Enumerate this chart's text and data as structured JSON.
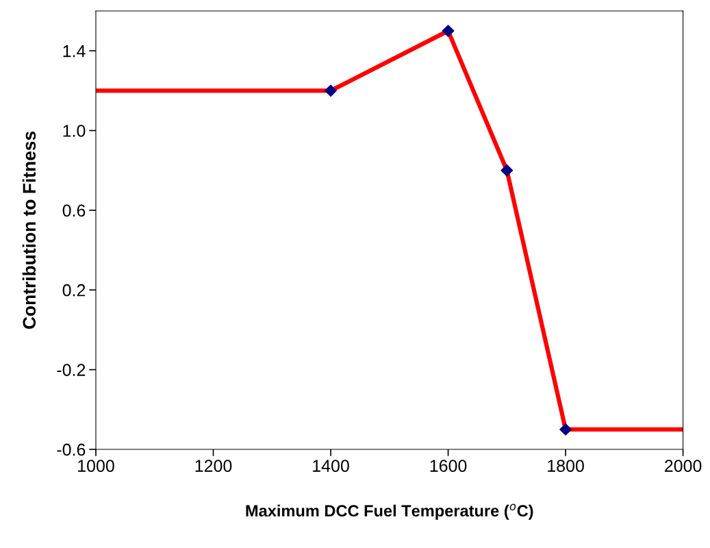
{
  "chart_data": {
    "type": "line",
    "xlabel": "Maximum DCC Fuel Temperature ($^{o}$C)",
    "ylabel": "Contribution to Fitness",
    "xlim": [
      1000,
      2000
    ],
    "xticks": [
      1000,
      1200,
      1400,
      1600,
      1800,
      2000
    ],
    "ylim": [
      -0.6,
      1.6
    ],
    "yticks": [
      -0.6,
      -0.2,
      0.2,
      0.6,
      {
        "value": 1.0,
        "label": "1.0"
      },
      1.4
    ],
    "grid": false,
    "legend": false,
    "series": [
      {
        "color": "#ff0000",
        "marker": "none",
        "line_style": "solid",
        "x": [
          1000,
          1400,
          1600,
          1700,
          1800,
          2000
        ],
        "values": [
          1.2,
          1.2,
          1.5,
          0.8,
          -0.5,
          -0.5
        ]
      },
      {
        "type": "scatter",
        "color": "#000080",
        "marker": "diamond",
        "x": [
          1400,
          1600,
          1700,
          1800
        ],
        "values": [
          1.2,
          1.5,
          0.8,
          -0.5
        ]
      }
    ]
  }
}
